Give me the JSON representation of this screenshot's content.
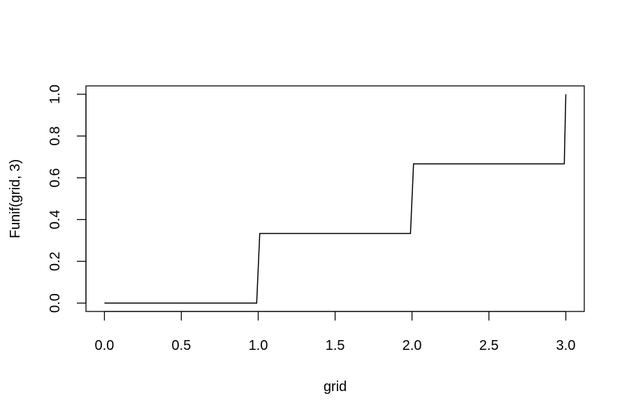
{
  "chart_data": {
    "type": "line",
    "title": "",
    "xlabel": "grid",
    "ylabel": "Funif(grid, 3)",
    "xlim": [
      -0.12,
      3.12
    ],
    "ylim": [
      -0.04,
      1.04
    ],
    "xticks": [
      0,
      0.5,
      1,
      1.5,
      2,
      2.5,
      3
    ],
    "xtick_labels": [
      "0.0",
      "0.5",
      "1.0",
      "1.5",
      "2.0",
      "2.5",
      "3.0"
    ],
    "yticks": [
      0,
      0.2,
      0.4,
      0.6,
      0.8,
      1
    ],
    "ytick_labels": [
      "0.0",
      "0.2",
      "0.4",
      "0.6",
      "0.8",
      "1.0"
    ],
    "grid": false,
    "line_color": "#000000",
    "series": [
      {
        "x": [
          0,
          0.99,
          1.01,
          1.99,
          2.01,
          2.99,
          3.0
        ],
        "y": [
          0,
          0,
          0.3333,
          0.3333,
          0.6667,
          0.6667,
          1.0
        ]
      }
    ]
  }
}
